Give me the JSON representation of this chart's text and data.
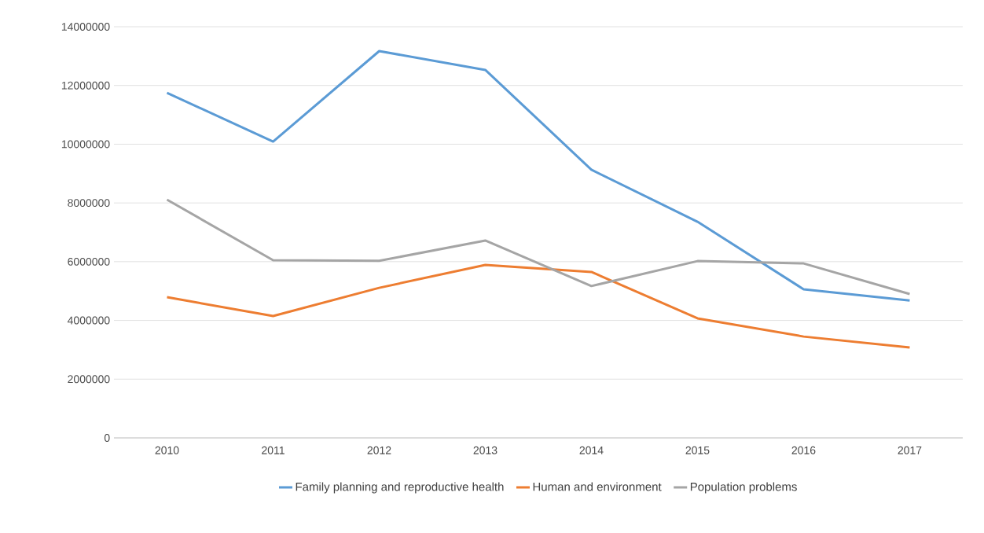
{
  "chart_data": {
    "type": "line",
    "categories": [
      "2010",
      "2011",
      "2012",
      "2013",
      "2014",
      "2015",
      "2016",
      "2017"
    ],
    "series": [
      {
        "name": "Family planning and reproductive health",
        "color": "#5b9bd5",
        "values": [
          11750000,
          10090000,
          13170000,
          12530000,
          9130000,
          7360000,
          5060000,
          4680000
        ]
      },
      {
        "name": "Human and environment",
        "color": "#ed7d31",
        "values": [
          4790000,
          4150000,
          5110000,
          5890000,
          5650000,
          4070000,
          3450000,
          3080000
        ]
      },
      {
        "name": "Population problems",
        "color": "#a5a5a5",
        "values": [
          8110000,
          6050000,
          6030000,
          6720000,
          5170000,
          6020000,
          5940000,
          4900000
        ]
      }
    ],
    "ylim": [
      0,
      14000000
    ],
    "yticks": [
      0,
      2000000,
      4000000,
      6000000,
      8000000,
      10000000,
      12000000,
      14000000
    ],
    "grid": "y",
    "legend": "bottom",
    "marker": "none",
    "line_style": "solid"
  }
}
